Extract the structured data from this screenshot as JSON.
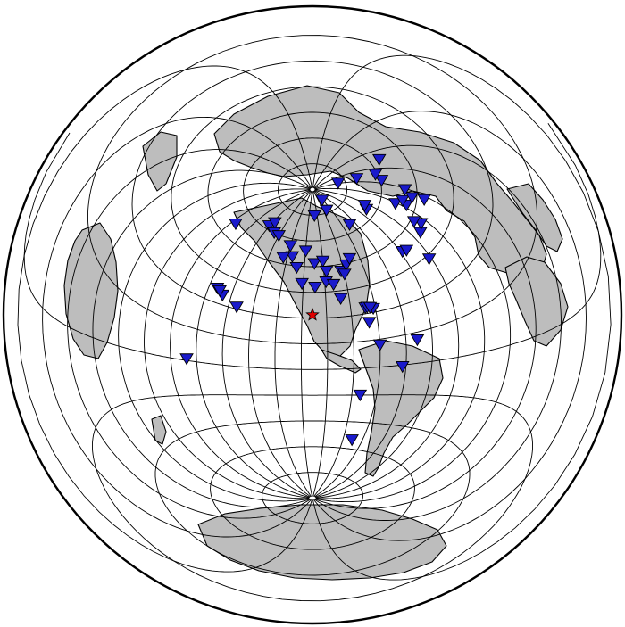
{
  "map": {
    "projection": "azimuthal-equidistant",
    "center": [
      -98.6,
      16.9
    ],
    "land_color": "#bdbdbd",
    "station_color": "#1a1acc",
    "event_color": "#e00000",
    "graticule": {
      "lon_step_deg": 15,
      "lat_step_deg": 15
    },
    "event": {
      "lon": -98.6,
      "lat": 16.9,
      "marker": "red-star"
    },
    "stations": [
      [
        -150.5,
        62.0
      ],
      [
        -147.7,
        64.9
      ],
      [
        -141.0,
        60.1
      ],
      [
        -135.0,
        59.6
      ],
      [
        -120.0,
        56.0
      ],
      [
        -104.8,
        54.0
      ],
      [
        -116.0,
        50.0
      ],
      [
        -123.3,
        48.6
      ],
      [
        -97.0,
        46.8
      ],
      [
        -90.0,
        48.0
      ],
      [
        -88.0,
        42.0
      ],
      [
        -77.0,
        41.0
      ],
      [
        -72.0,
        44.0
      ],
      [
        -68.0,
        47.0
      ],
      [
        -75.0,
        39.0
      ],
      [
        -106.0,
        35.0
      ],
      [
        -111.0,
        44.0
      ],
      [
        -96.8,
        33.0
      ],
      [
        -89.0,
        35.9
      ],
      [
        -84.0,
        34.0
      ],
      [
        -80.4,
        25.5
      ],
      [
        -66.0,
        18.3
      ],
      [
        -61.3,
        17.1
      ],
      [
        -64.8,
        18.4
      ],
      [
        -63.1,
        18.0
      ],
      [
        -65.0,
        10.0
      ],
      [
        -38.5,
        -3.7
      ],
      [
        -60.0,
        -3.1
      ],
      [
        -47.0,
        -15.8
      ],
      [
        -70.0,
        -30.0
      ],
      [
        -68.0,
        -55.0
      ],
      [
        -159.8,
        22.0
      ],
      [
        -155.3,
        19.7
      ],
      [
        -145.0,
        16.0
      ],
      [
        -170.7,
        -14.3
      ],
      [
        -157.8,
        21.3
      ],
      [
        -176.6,
        51.9
      ],
      [
        -16.4,
        28.3
      ],
      [
        -28.6,
        38.5
      ],
      [
        -25.6,
        37.8
      ],
      [
        -9.1,
        38.7
      ],
      [
        -3.7,
        40.4
      ],
      [
        -5.9,
        43.4
      ],
      [
        2.3,
        48.8
      ],
      [
        -1.0,
        53.5
      ],
      [
        4.4,
        50.8
      ],
      [
        10.0,
        47.0
      ],
      [
        12.5,
        41.9
      ],
      [
        14.0,
        50.0
      ],
      [
        18.0,
        59.3
      ],
      [
        24.0,
        61.0
      ],
      [
        20.0,
        69.6
      ],
      [
        -21.9,
        64.1
      ],
      [
        -18.0,
        65.7
      ],
      [
        -51.7,
        64.2
      ],
      [
        -68.7,
        76.5
      ],
      [
        -94.9,
        74.7
      ],
      [
        -62.3,
        82.5
      ],
      [
        15.6,
        78.2
      ],
      [
        37.6,
        55.7
      ]
    ]
  }
}
